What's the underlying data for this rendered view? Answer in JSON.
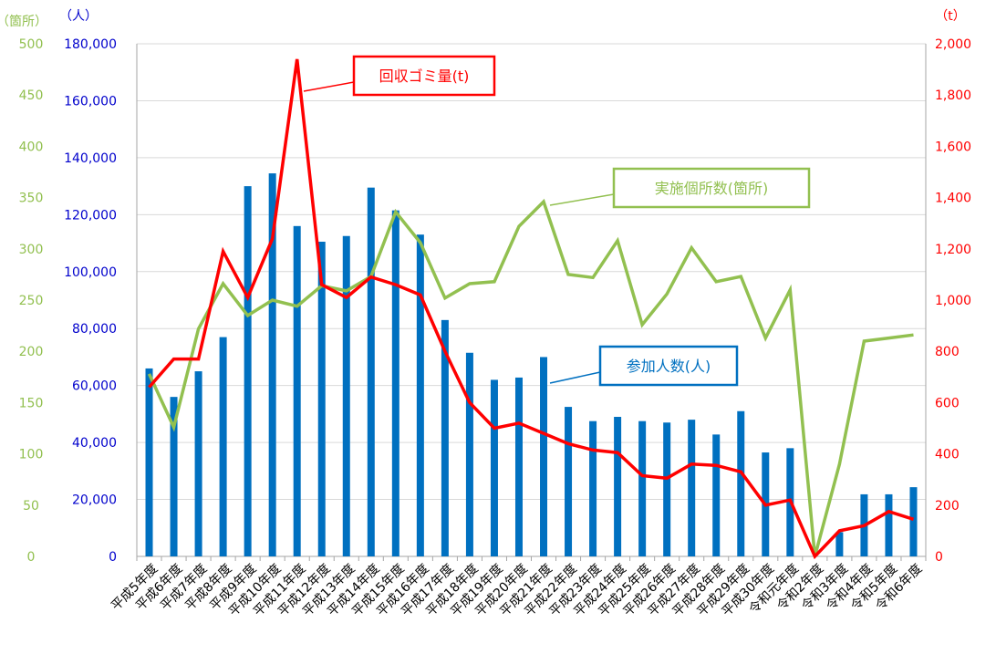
{
  "chart_data": {
    "type": "bar+line",
    "categories": [
      "平成5年度",
      "平成6年度",
      "平成7年度",
      "平成8年度",
      "平成9年度",
      "平成10年度",
      "平成11年度",
      "平成12年度",
      "平成13年度",
      "平成14年度",
      "平成15年度",
      "平成16年度",
      "平成17年度",
      "平成18年度",
      "平成19年度",
      "平成20年度",
      "平成21年度",
      "平成22年度",
      "平成23年度",
      "平成24年度",
      "平成25年度",
      "平成26年度",
      "平成27年度",
      "平成28年度",
      "平成29年度",
      "平成30年度",
      "令和元年度",
      "令和2年度",
      "令和3年度",
      "令和4年度",
      "令和5年度",
      "令和6年度"
    ],
    "axes": {
      "participants": {
        "unit_label": "（人）",
        "min": 0,
        "max": 180000,
        "step": 20000,
        "color": "#0000CC"
      },
      "sites": {
        "unit_label": "（箇所）",
        "min": 0,
        "max": 500,
        "step": 50,
        "color": "#92C050"
      },
      "garbage": {
        "unit_label": "（t）",
        "min": 0,
        "max": 2000,
        "step": 200,
        "color": "#FF0000"
      }
    },
    "series": [
      {
        "name": "参加人数(人)",
        "kind": "bar",
        "axis": "participants",
        "color": "#0070C0",
        "values": [
          66000,
          56000,
          65000,
          77000,
          130000,
          134500,
          116000,
          110500,
          112500,
          129500,
          121500,
          113000,
          83000,
          71500,
          62000,
          62800,
          70000,
          52500,
          47500,
          49000,
          47500,
          47000,
          48000,
          42800,
          51000,
          36500,
          38000,
          0,
          8500,
          21800,
          21800,
          24300
        ]
      },
      {
        "name": "実施個所数(箇所)",
        "kind": "line",
        "axis": "sites",
        "color": "#92C050",
        "values": [
          178,
          126,
          222,
          266,
          235,
          250,
          244,
          264,
          259,
          273,
          336,
          306,
          252,
          266,
          268,
          322,
          346,
          275,
          272,
          308,
          226,
          256,
          301,
          268,
          273,
          213,
          260,
          0,
          90,
          210,
          213,
          216
        ]
      },
      {
        "name": "回収ゴミ量(t)",
        "kind": "line",
        "axis": "garbage",
        "color": "#FF0000",
        "values": [
          660,
          770,
          770,
          1190,
          1010,
          1240,
          1940,
          1060,
          1010,
          1090,
          1060,
          1020,
          800,
          600,
          500,
          520,
          480,
          440,
          415,
          405,
          315,
          305,
          360,
          355,
          330,
          200,
          220,
          0,
          100,
          120,
          175,
          145
        ]
      }
    ],
    "callouts": [
      {
        "series": "回収ゴミ量(t)",
        "text": "回収ゴミ量(t)",
        "border": "#FF0000"
      },
      {
        "series": "実施個所数(箇所)",
        "text": "実施個所数(箇所)",
        "border": "#92C050"
      },
      {
        "series": "参加人数(人)",
        "text": "参加人数(人)",
        "border": "#0070C0"
      }
    ]
  }
}
